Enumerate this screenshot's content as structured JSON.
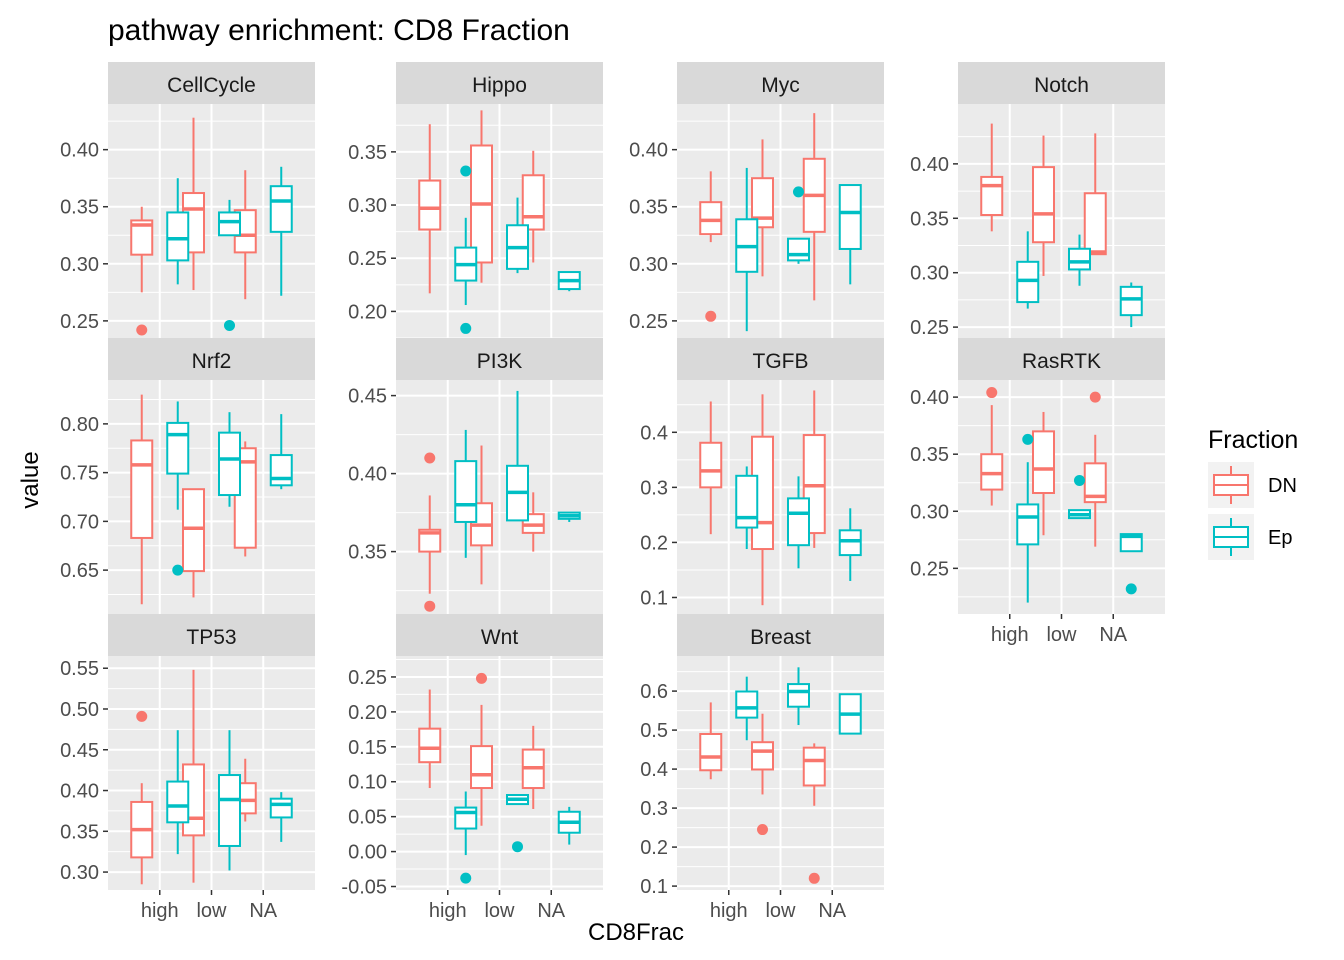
{
  "chart_data": {
    "type": "boxplot",
    "title": "pathway enrichment: CD8 Fraction",
    "xlabel": "CD8Frac",
    "ylabel": "value",
    "categories": [
      "high",
      "low",
      "NA"
    ],
    "legend": {
      "title": "Fraction",
      "placement": "right",
      "entries": [
        {
          "name": "DN",
          "color": "#F8766D"
        },
        {
          "name": "Ep",
          "color": "#00BFC4"
        }
      ]
    },
    "facets": [
      {
        "name": "CellCycle",
        "ylim": [
          0.235,
          0.44
        ],
        "ticks": [
          0.25,
          0.3,
          0.35,
          0.4
        ],
        "tick_labels": [
          "0.25",
          "0.30",
          "0.35",
          "0.40"
        ],
        "boxes": {
          "DN": [
            {
              "min": 0.275,
              "q1": 0.308,
              "median": 0.334,
              "q3": 0.338,
              "max": 0.35,
              "outliers": [
                0.242
              ]
            },
            {
              "min": 0.277,
              "q1": 0.31,
              "median": 0.348,
              "q3": 0.362,
              "max": 0.428,
              "outliers": []
            },
            {
              "min": 0.269,
              "q1": 0.31,
              "median": 0.325,
              "q3": 0.347,
              "max": 0.382,
              "outliers": []
            }
          ],
          "Ep": [
            {
              "min": 0.282,
              "q1": 0.303,
              "median": 0.322,
              "q3": 0.345,
              "max": 0.375,
              "outliers": []
            },
            {
              "min": 0.325,
              "q1": 0.325,
              "median": 0.337,
              "q3": 0.345,
              "max": 0.356,
              "outliers": [
                0.246
              ]
            },
            {
              "min": 0.272,
              "q1": 0.328,
              "median": 0.355,
              "q3": 0.368,
              "max": 0.385,
              "outliers": []
            }
          ]
        }
      },
      {
        "name": "Hippo",
        "ylim": [
          0.175,
          0.395
        ],
        "ticks": [
          0.2,
          0.25,
          0.3,
          0.35
        ],
        "tick_labels": [
          "0.20",
          "0.25",
          "0.30",
          "0.35"
        ],
        "boxes": {
          "DN": [
            {
              "min": 0.217,
              "q1": 0.277,
              "median": 0.297,
              "q3": 0.323,
              "max": 0.376,
              "outliers": []
            },
            {
              "min": 0.227,
              "q1": 0.246,
              "median": 0.301,
              "q3": 0.356,
              "max": 0.389,
              "outliers": []
            },
            {
              "min": 0.246,
              "q1": 0.277,
              "median": 0.289,
              "q3": 0.328,
              "max": 0.351,
              "outliers": []
            }
          ],
          "Ep": [
            {
              "min": 0.206,
              "q1": 0.229,
              "median": 0.244,
              "q3": 0.26,
              "max": 0.288,
              "outliers": [
                0.332,
                0.184
              ]
            },
            {
              "min": 0.236,
              "q1": 0.24,
              "median": 0.26,
              "q3": 0.281,
              "max": 0.307,
              "outliers": []
            },
            {
              "min": 0.219,
              "q1": 0.221,
              "median": 0.229,
              "q3": 0.237,
              "max": 0.237,
              "outliers": []
            }
          ]
        }
      },
      {
        "name": "Myc",
        "ylim": [
          0.235,
          0.44
        ],
        "ticks": [
          0.25,
          0.3,
          0.35,
          0.4
        ],
        "tick_labels": [
          "0.25",
          "0.30",
          "0.35",
          "0.40"
        ],
        "boxes": {
          "DN": [
            {
              "min": 0.319,
              "q1": 0.326,
              "median": 0.338,
              "q3": 0.354,
              "max": 0.381,
              "outliers": [
                0.254
              ]
            },
            {
              "min": 0.289,
              "q1": 0.332,
              "median": 0.34,
              "q3": 0.375,
              "max": 0.409,
              "outliers": []
            },
            {
              "min": 0.268,
              "q1": 0.328,
              "median": 0.36,
              "q3": 0.392,
              "max": 0.432,
              "outliers": []
            }
          ],
          "Ep": [
            {
              "min": 0.241,
              "q1": 0.293,
              "median": 0.315,
              "q3": 0.339,
              "max": 0.384,
              "outliers": []
            },
            {
              "min": 0.3,
              "q1": 0.303,
              "median": 0.308,
              "q3": 0.322,
              "max": 0.322,
              "outliers": [
                0.363
              ]
            },
            {
              "min": 0.282,
              "q1": 0.313,
              "median": 0.345,
              "q3": 0.369,
              "max": 0.369,
              "outliers": []
            }
          ]
        }
      },
      {
        "name": "Notch",
        "ylim": [
          0.24,
          0.455
        ],
        "ticks": [
          0.25,
          0.3,
          0.35,
          0.4
        ],
        "tick_labels": [
          "0.25",
          "0.30",
          "0.35",
          "0.40"
        ],
        "boxes": {
          "DN": [
            {
              "min": 0.338,
              "q1": 0.353,
              "median": 0.38,
              "q3": 0.388,
              "max": 0.437,
              "outliers": []
            },
            {
              "min": 0.297,
              "q1": 0.328,
              "median": 0.354,
              "q3": 0.397,
              "max": 0.426,
              "outliers": []
            },
            {
              "min": 0.317,
              "q1": 0.317,
              "median": 0.319,
              "q3": 0.373,
              "max": 0.428,
              "outliers": []
            }
          ],
          "Ep": [
            {
              "min": 0.267,
              "q1": 0.273,
              "median": 0.293,
              "q3": 0.31,
              "max": 0.338,
              "outliers": []
            },
            {
              "min": 0.288,
              "q1": 0.303,
              "median": 0.31,
              "q3": 0.322,
              "max": 0.335,
              "outliers": []
            },
            {
              "min": 0.25,
              "q1": 0.261,
              "median": 0.276,
              "q3": 0.287,
              "max": 0.291,
              "outliers": []
            }
          ]
        }
      },
      {
        "name": "Nrf2",
        "ylim": [
          0.605,
          0.845
        ],
        "ticks": [
          0.65,
          0.7,
          0.75,
          0.8
        ],
        "tick_labels": [
          "0.65",
          "0.70",
          "0.75",
          "0.80"
        ],
        "boxes": {
          "DN": [
            {
              "min": 0.615,
              "q1": 0.683,
              "median": 0.758,
              "q3": 0.783,
              "max": 0.83,
              "outliers": []
            },
            {
              "min": 0.622,
              "q1": 0.649,
              "median": 0.693,
              "q3": 0.733,
              "max": 0.733,
              "outliers": []
            },
            {
              "min": 0.664,
              "q1": 0.673,
              "median": 0.761,
              "q3": 0.775,
              "max": 0.782,
              "outliers": []
            }
          ],
          "Ep": [
            {
              "min": 0.712,
              "q1": 0.749,
              "median": 0.789,
              "q3": 0.801,
              "max": 0.823,
              "outliers": [
                0.65
              ]
            },
            {
              "min": 0.715,
              "q1": 0.727,
              "median": 0.764,
              "q3": 0.791,
              "max": 0.812,
              "outliers": []
            },
            {
              "min": 0.733,
              "q1": 0.737,
              "median": 0.744,
              "q3": 0.768,
              "max": 0.81,
              "outliers": []
            }
          ]
        }
      },
      {
        "name": "PI3K",
        "ylim": [
          0.31,
          0.46
        ],
        "ticks": [
          0.35,
          0.4,
          0.45
        ],
        "tick_labels": [
          "0.35",
          "0.40",
          "0.45"
        ],
        "boxes": {
          "DN": [
            {
              "min": 0.323,
              "q1": 0.35,
              "median": 0.362,
              "q3": 0.364,
              "max": 0.386,
              "outliers": [
                0.41,
                0.315
              ]
            },
            {
              "min": 0.329,
              "q1": 0.354,
              "median": 0.367,
              "q3": 0.381,
              "max": 0.418,
              "outliers": []
            },
            {
              "min": 0.35,
              "q1": 0.362,
              "median": 0.367,
              "q3": 0.374,
              "max": 0.388,
              "outliers": []
            }
          ],
          "Ep": [
            {
              "min": 0.346,
              "q1": 0.369,
              "median": 0.38,
              "q3": 0.408,
              "max": 0.428,
              "outliers": []
            },
            {
              "min": 0.37,
              "q1": 0.37,
              "median": 0.388,
              "q3": 0.405,
              "max": 0.453,
              "outliers": []
            },
            {
              "min": 0.369,
              "q1": 0.371,
              "median": 0.373,
              "q3": 0.375,
              "max": 0.375,
              "outliers": []
            }
          ]
        }
      },
      {
        "name": "TGFB",
        "ylim": [
          0.07,
          0.495
        ],
        "ticks": [
          0.1,
          0.2,
          0.3,
          0.4
        ],
        "tick_labels": [
          "0.1",
          "0.2",
          "0.3",
          "0.4"
        ],
        "boxes": {
          "DN": [
            {
              "min": 0.215,
              "q1": 0.3,
              "median": 0.33,
              "q3": 0.381,
              "max": 0.456,
              "outliers": []
            },
            {
              "min": 0.086,
              "q1": 0.188,
              "median": 0.236,
              "q3": 0.392,
              "max": 0.469,
              "outliers": []
            },
            {
              "min": 0.19,
              "q1": 0.217,
              "median": 0.303,
              "q3": 0.395,
              "max": 0.476,
              "outliers": []
            }
          ],
          "Ep": [
            {
              "min": 0.188,
              "q1": 0.227,
              "median": 0.245,
              "q3": 0.321,
              "max": 0.338,
              "outliers": []
            },
            {
              "min": 0.153,
              "q1": 0.195,
              "median": 0.253,
              "q3": 0.28,
              "max": 0.32,
              "outliers": []
            },
            {
              "min": 0.13,
              "q1": 0.177,
              "median": 0.203,
              "q3": 0.222,
              "max": 0.262,
              "outliers": []
            }
          ]
        }
      },
      {
        "name": "RasRTK",
        "ylim": [
          0.21,
          0.415
        ],
        "ticks": [
          0.25,
          0.3,
          0.35,
          0.4
        ],
        "tick_labels": [
          "0.25",
          "0.30",
          "0.35",
          "0.40"
        ],
        "boxes": {
          "DN": [
            {
              "min": 0.305,
              "q1": 0.319,
              "median": 0.333,
              "q3": 0.35,
              "max": 0.393,
              "outliers": [
                0.404
              ]
            },
            {
              "min": 0.279,
              "q1": 0.316,
              "median": 0.337,
              "q3": 0.37,
              "max": 0.387,
              "outliers": []
            },
            {
              "min": 0.269,
              "q1": 0.308,
              "median": 0.313,
              "q3": 0.342,
              "max": 0.367,
              "outliers": [
                0.4
              ]
            }
          ],
          "Ep": [
            {
              "min": 0.22,
              "q1": 0.271,
              "median": 0.295,
              "q3": 0.306,
              "max": 0.343,
              "outliers": [
                0.363
              ]
            },
            {
              "min": 0.294,
              "q1": 0.294,
              "median": 0.297,
              "q3": 0.301,
              "max": 0.301,
              "outliers": [
                0.327
              ]
            },
            {
              "min": 0.265,
              "q1": 0.265,
              "median": 0.278,
              "q3": 0.28,
              "max": 0.28,
              "outliers": [
                0.232
              ]
            }
          ]
        }
      },
      {
        "name": "TP53",
        "ylim": [
          0.278,
          0.565
        ],
        "ticks": [
          0.3,
          0.35,
          0.4,
          0.45,
          0.5,
          0.55
        ],
        "tick_labels": [
          "0.30",
          "0.35",
          "0.40",
          "0.45",
          "0.50",
          "0.55"
        ],
        "boxes": {
          "DN": [
            {
              "min": 0.285,
              "q1": 0.318,
              "median": 0.352,
              "q3": 0.386,
              "max": 0.409,
              "outliers": [
                0.491
              ]
            },
            {
              "min": 0.287,
              "q1": 0.345,
              "median": 0.366,
              "q3": 0.432,
              "max": 0.548,
              "outliers": []
            },
            {
              "min": 0.362,
              "q1": 0.372,
              "median": 0.388,
              "q3": 0.409,
              "max": 0.439,
              "outliers": []
            }
          ],
          "Ep": [
            {
              "min": 0.322,
              "q1": 0.361,
              "median": 0.381,
              "q3": 0.411,
              "max": 0.474,
              "outliers": []
            },
            {
              "min": 0.302,
              "q1": 0.332,
              "median": 0.389,
              "q3": 0.419,
              "max": 0.474,
              "outliers": []
            },
            {
              "min": 0.337,
              "q1": 0.367,
              "median": 0.383,
              "q3": 0.39,
              "max": 0.398,
              "outliers": []
            }
          ]
        }
      },
      {
        "name": "Wnt",
        "ylim": [
          -0.055,
          0.28
        ],
        "ticks": [
          -0.05,
          0.0,
          0.05,
          0.1,
          0.15,
          0.2,
          0.25
        ],
        "tick_labels": [
          "-0.05",
          "0.00",
          "0.05",
          "0.10",
          "0.15",
          "0.20",
          "0.25"
        ],
        "boxes": {
          "DN": [
            {
              "min": 0.091,
              "q1": 0.128,
              "median": 0.148,
              "q3": 0.176,
              "max": 0.232,
              "outliers": []
            },
            {
              "min": 0.037,
              "q1": 0.091,
              "median": 0.11,
              "q3": 0.151,
              "max": 0.21,
              "outliers": [
                0.248
              ]
            },
            {
              "min": 0.061,
              "q1": 0.091,
              "median": 0.12,
              "q3": 0.146,
              "max": 0.18,
              "outliers": []
            }
          ],
          "Ep": [
            {
              "min": -0.005,
              "q1": 0.033,
              "median": 0.056,
              "q3": 0.063,
              "max": 0.086,
              "outliers": [
                -0.038
              ]
            },
            {
              "min": 0.068,
              "q1": 0.068,
              "median": 0.075,
              "q3": 0.081,
              "max": 0.081,
              "outliers": [
                0.007
              ]
            },
            {
              "min": 0.01,
              "q1": 0.027,
              "median": 0.042,
              "q3": 0.057,
              "max": 0.064,
              "outliers": []
            }
          ]
        }
      },
      {
        "name": "Breast",
        "ylim": [
          0.09,
          0.69
        ],
        "ticks": [
          0.1,
          0.2,
          0.3,
          0.4,
          0.5,
          0.6
        ],
        "tick_labels": [
          "0.1",
          "0.2",
          "0.3",
          "0.4",
          "0.5",
          "0.6"
        ],
        "boxes": {
          "DN": [
            {
              "min": 0.374,
              "q1": 0.397,
              "median": 0.431,
              "q3": 0.49,
              "max": 0.571,
              "outliers": []
            },
            {
              "min": 0.335,
              "q1": 0.399,
              "median": 0.446,
              "q3": 0.469,
              "max": 0.542,
              "outliers": [
                0.245
              ]
            },
            {
              "min": 0.306,
              "q1": 0.358,
              "median": 0.422,
              "q3": 0.455,
              "max": 0.466,
              "outliers": [
                0.12
              ]
            }
          ],
          "Ep": [
            {
              "min": 0.474,
              "q1": 0.532,
              "median": 0.557,
              "q3": 0.599,
              "max": 0.637,
              "outliers": []
            },
            {
              "min": 0.513,
              "q1": 0.56,
              "median": 0.599,
              "q3": 0.618,
              "max": 0.661,
              "outliers": []
            },
            {
              "min": 0.491,
              "q1": 0.491,
              "median": 0.541,
              "q3": 0.592,
              "max": 0.592,
              "outliers": []
            }
          ]
        }
      }
    ],
    "grid": true
  }
}
